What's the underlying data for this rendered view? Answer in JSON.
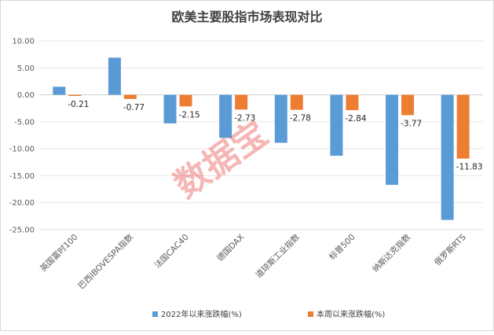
{
  "chart_data": {
    "type": "bar",
    "title": "欧美主要股指市场表现对比",
    "categories": [
      "英国富时100",
      "巴西IBOVESPA指数",
      "法国CAC40",
      "德国DAX",
      "道琼斯工业指数",
      "标普500",
      "纳斯达克指数",
      "俄罗斯RTS"
    ],
    "series": [
      {
        "name": "2022年以来涨跌幅(%)",
        "color": "#5b9bd5",
        "values": [
          1.5,
          6.9,
          -5.3,
          -8.0,
          -8.9,
          -11.3,
          -16.7,
          -23.2
        ],
        "labels": [
          "",
          "",
          "",
          "",
          "",
          "",
          "",
          ""
        ]
      },
      {
        "name": "本周以来涨跌幅(%)",
        "color": "#ed7d31",
        "values": [
          -0.21,
          -0.77,
          -2.15,
          -2.73,
          -2.78,
          -2.84,
          -3.77,
          -11.83
        ],
        "labels": [
          "-0.21",
          "-0.77",
          "-2.15",
          "-2.73",
          "-2.78",
          "-2.84",
          "-3.77",
          "-11.83"
        ]
      }
    ],
    "yticks": [
      "10.00",
      "5.00",
      "0.00",
      "-5.00",
      "-10.00",
      "-15.00",
      "-20.00",
      "-25.00"
    ],
    "ylim": [
      -25,
      10
    ],
    "grid": true,
    "legend_position": "bottom",
    "watermark": "数据宝"
  }
}
